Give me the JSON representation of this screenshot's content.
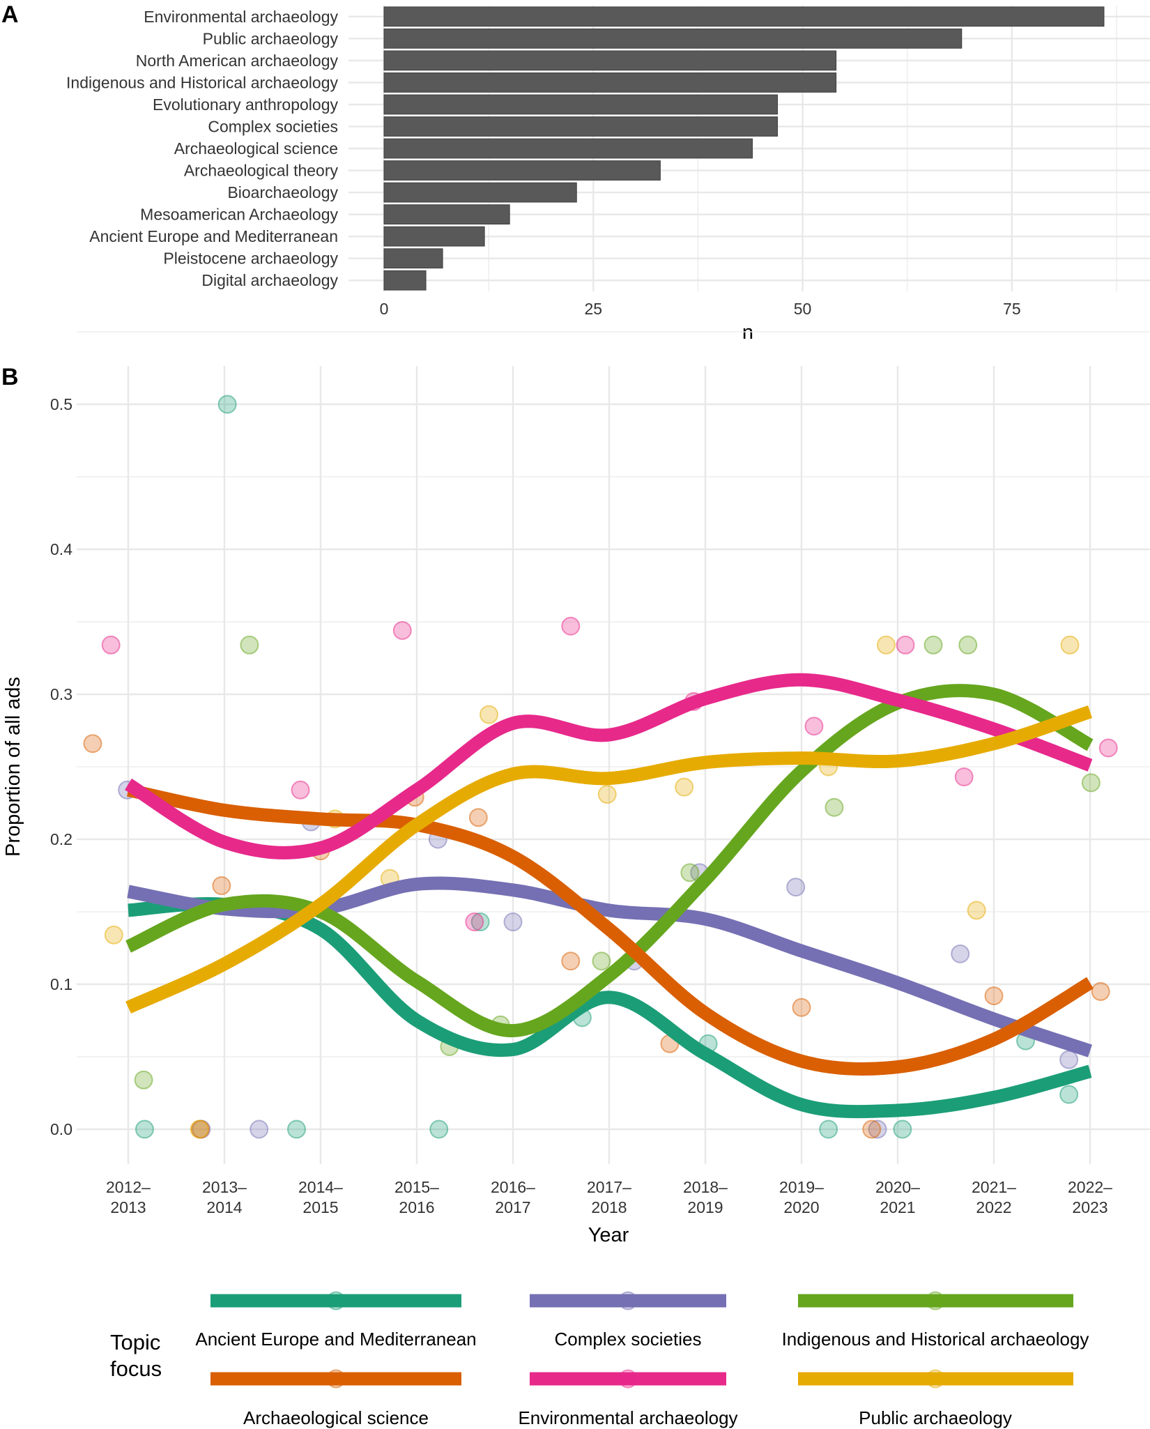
{
  "chart_data": [
    {
      "panel": "A",
      "type": "bar",
      "orientation": "horizontal",
      "title": "",
      "xlabel": "n",
      "ylabel": "",
      "xlim": [
        0,
        89
      ],
      "xticks": [
        0,
        25,
        50,
        75
      ],
      "grid": true,
      "bar_color": "#595959",
      "categories": [
        "Environmental archaeology",
        "Public archaeology",
        "North American archaeology",
        "Indigenous and Historical archaeology",
        "Evolutionary anthropology",
        "Complex societies",
        "Archaeological science",
        "Archaeological theory",
        "Bioarchaeology",
        "Mesoamerican Archaeology",
        "Ancient Europe and Mediterranean",
        "Pleistocene archaeology",
        "Digital archaeology"
      ],
      "values": [
        86,
        69,
        54,
        54,
        47,
        47,
        44,
        33,
        23,
        15,
        12,
        7,
        5
      ]
    },
    {
      "panel": "B",
      "type": "line",
      "title": "",
      "xlabel": "Year",
      "ylabel": "Proportion of all ads",
      "ylim": [
        -0.03,
        0.53
      ],
      "yticks": [
        0.0,
        0.1,
        0.2,
        0.3,
        0.4,
        0.5
      ],
      "ytick_labels": [
        "0.0",
        "0.1",
        "0.2",
        "0.3",
        "0.4",
        "0.5"
      ],
      "grid": true,
      "x": [
        "2012–2013",
        "2013–2014",
        "2014–2015",
        "2015–2016",
        "2016–2017",
        "2017–2018",
        "2018–2019",
        "2019–2020",
        "2020–2021",
        "2021–2022",
        "2022–2023"
      ],
      "x_tick_lines": [
        [
          "2012–",
          "2013"
        ],
        [
          "2013–",
          "2014"
        ],
        [
          "2014–",
          "2015"
        ],
        [
          "2015–",
          "2016"
        ],
        [
          "2016–",
          "2017"
        ],
        [
          "2017–",
          "2018"
        ],
        [
          "2018–",
          "2019"
        ],
        [
          "2019–",
          "2020"
        ],
        [
          "2020–",
          "2021"
        ],
        [
          "2021–",
          "2022"
        ],
        [
          "2022–",
          "2023"
        ]
      ],
      "legend": {
        "title": "Topic focus",
        "title_lines": [
          "Topic",
          "focus"
        ],
        "position": "bottom"
      },
      "series": [
        {
          "name": "Ancient Europe and Mediterranean",
          "color": "#1B9E77",
          "smooth": [
            0.151,
            0.155,
            0.138,
            0.075,
            0.055,
            0.091,
            0.052,
            0.017,
            0.013,
            0.022,
            0.04
          ],
          "points": [
            [
              0.17,
              0.0
            ],
            [
              1.03,
              0.5
            ],
            [
              1.75,
              0.0
            ],
            [
              3.23,
              0.0
            ],
            [
              3.66,
              0.143
            ],
            [
              4.72,
              0.077
            ],
            [
              6.03,
              0.059
            ],
            [
              7.28,
              0.0
            ],
            [
              8.05,
              0.0
            ],
            [
              9.33,
              0.061
            ],
            [
              9.78,
              0.024
            ]
          ]
        },
        {
          "name": "Complex societies",
          "color": "#7570B3",
          "smooth": [
            0.164,
            0.152,
            0.152,
            0.169,
            0.165,
            0.151,
            0.145,
            0.123,
            0.101,
            0.076,
            0.054
          ],
          "points": [
            [
              -0.01,
              0.234
            ],
            [
              0.76,
              0.0
            ],
            [
              1.36,
              0.0
            ],
            [
              1.9,
              0.212
            ],
            [
              3.22,
              0.2
            ],
            [
              4.0,
              0.143
            ],
            [
              5.26,
              0.116
            ],
            [
              5.94,
              0.177
            ],
            [
              6.94,
              0.167
            ],
            [
              7.79,
              0.0
            ],
            [
              8.65,
              0.121
            ],
            [
              9.78,
              0.048
            ]
          ]
        },
        {
          "name": "Indigenous and Historical archaeology",
          "color": "#66A61E",
          "smooth": [
            0.126,
            0.155,
            0.15,
            0.102,
            0.068,
            0.106,
            0.172,
            0.247,
            0.294,
            0.3,
            0.265
          ],
          "points": [
            [
              0.16,
              0.034
            ],
            [
              1.26,
              0.334
            ],
            [
              3.34,
              0.057
            ],
            [
              3.87,
              0.072
            ],
            [
              4.92,
              0.116
            ],
            [
              5.84,
              0.177
            ],
            [
              7.34,
              0.222
            ],
            [
              8.37,
              0.334
            ],
            [
              8.73,
              0.334
            ],
            [
              10.01,
              0.239
            ]
          ]
        },
        {
          "name": "Archaeological science",
          "color": "#D95F02",
          "smooth": [
            0.234,
            0.22,
            0.214,
            0.21,
            0.188,
            0.138,
            0.08,
            0.047,
            0.043,
            0.062,
            0.101
          ],
          "points": [
            [
              -0.37,
              0.266
            ],
            [
              0.75,
              0.0
            ],
            [
              0.97,
              0.168
            ],
            [
              2.0,
              0.192
            ],
            [
              2.98,
              0.229
            ],
            [
              3.64,
              0.215
            ],
            [
              4.6,
              0.116
            ],
            [
              5.63,
              0.059
            ],
            [
              7.0,
              0.084
            ],
            [
              7.73,
              0.0
            ],
            [
              9.0,
              0.092
            ],
            [
              10.11,
              0.095
            ]
          ]
        },
        {
          "name": "Environmental archaeology",
          "color": "#E7298A",
          "smooth": [
            0.238,
            0.198,
            0.194,
            0.234,
            0.28,
            0.272,
            0.297,
            0.31,
            0.296,
            0.276,
            0.251
          ],
          "points": [
            [
              -0.18,
              0.334
            ],
            [
              1.79,
              0.234
            ],
            [
              2.85,
              0.344
            ],
            [
              3.6,
              0.143
            ],
            [
              4.6,
              0.347
            ],
            [
              5.88,
              0.295
            ],
            [
              7.13,
              0.278
            ],
            [
              8.08,
              0.334
            ],
            [
              8.69,
              0.243
            ],
            [
              10.19,
              0.263
            ]
          ]
        },
        {
          "name": "Public archaeology",
          "color": "#E6AB02",
          "smooth": [
            0.084,
            0.114,
            0.155,
            0.21,
            0.245,
            0.242,
            0.253,
            0.256,
            0.254,
            0.266,
            0.288
          ],
          "points": [
            [
              -0.15,
              0.134
            ],
            [
              0.74,
              0.0
            ],
            [
              2.15,
              0.214
            ],
            [
              2.72,
              0.173
            ],
            [
              3.75,
              0.286
            ],
            [
              4.98,
              0.231
            ],
            [
              5.78,
              0.236
            ],
            [
              7.28,
              0.25
            ],
            [
              7.88,
              0.334
            ],
            [
              8.82,
              0.151
            ],
            [
              9.79,
              0.334
            ]
          ]
        }
      ]
    }
  ],
  "panel_labels": {
    "a": "A",
    "b": "B"
  }
}
